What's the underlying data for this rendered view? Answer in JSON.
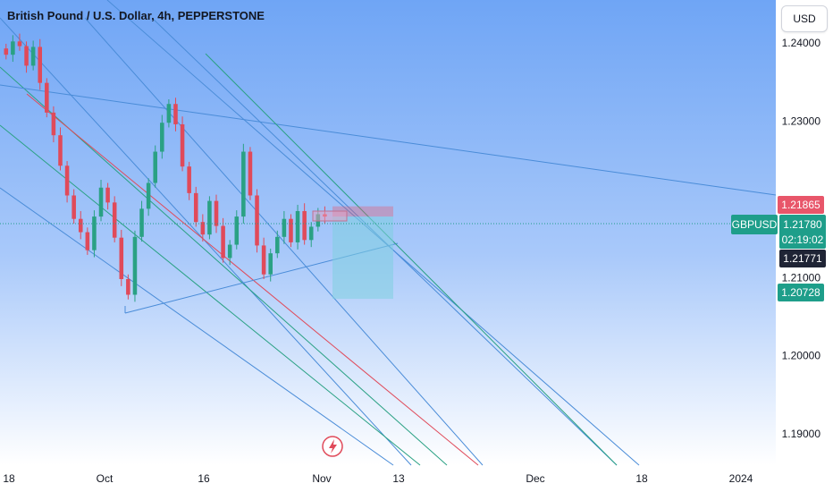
{
  "title": "British Pound / U.S. Dollar, 4h, PEPPERSTONE",
  "currency_button": "USD",
  "symbol_badge": "GBPUSD",
  "badges": {
    "red": "1.21865",
    "price": "1.21780",
    "countdown": "02:19:02",
    "dark": "1.21771",
    "green": "1.20728"
  },
  "icon": "lightning-icon",
  "colors": {
    "background_top": "#6fa5f5",
    "background_bottom": "#ffffff",
    "red": "#e8566a",
    "green": "#1e9e8a",
    "dark": "#1f2435",
    "channel_blue": "#4a8cd8",
    "channel_green": "#2aa184",
    "channel_red": "#e04a5a"
  },
  "chart_data": {
    "type": "candlestick",
    "title": "British Pound / U.S. Dollar, 4h, PEPPERSTONE",
    "y_ticks": [
      "1.24000",
      "1.23000",
      "1.21000",
      "1.20000",
      "1.19000"
    ],
    "x_ticks": [
      "18",
      "Oct",
      "16",
      "Nov",
      "13",
      "Dec",
      "18",
      "2024"
    ],
    "ylim": [
      1.186,
      1.2455
    ],
    "current_price": 1.2178,
    "closes": [
      1.2385,
      1.2402,
      1.2396,
      1.2371,
      1.2395,
      1.2349,
      1.2311,
      1.2282,
      1.2243,
      1.2205,
      1.2175,
      1.2158,
      1.2135,
      1.2178,
      1.2215,
      1.2196,
      1.2151,
      1.2098,
      1.2078,
      1.2152,
      1.2188,
      1.2221,
      1.2261,
      1.2298,
      1.2322,
      1.2296,
      1.2242,
      1.2208,
      1.2171,
      1.2155,
      1.2198,
      1.2166,
      1.2125,
      1.2142,
      1.2178,
      1.2261,
      1.2205,
      1.2141,
      1.2104,
      1.2131,
      1.2152,
      1.2175,
      1.2145,
      1.2185,
      1.2148,
      1.2165,
      1.2181,
      1.2178
    ],
    "x_fraction_end": 0.4,
    "long_position": {
      "entry": 1.2178,
      "stop": 1.21865,
      "target": 1.20728
    }
  }
}
